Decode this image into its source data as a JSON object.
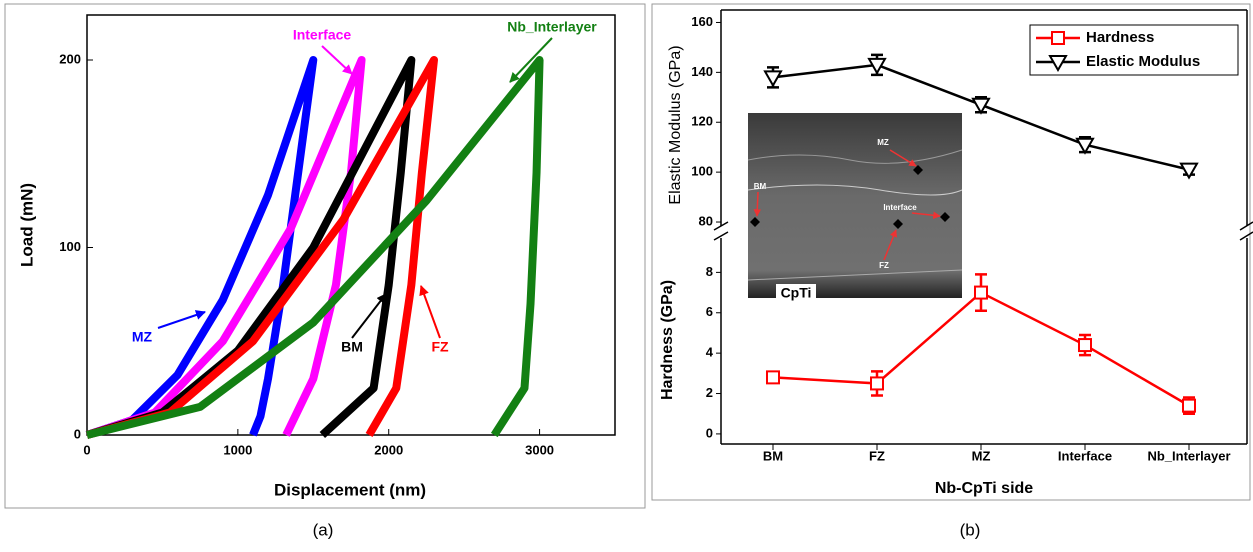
{
  "chart_data": [
    {
      "type": "line",
      "xlabel": "Displacement (nm)",
      "ylabel": "Load (mN)",
      "xlim": [
        0,
        3500
      ],
      "ylim": [
        0,
        224
      ],
      "xticks": [
        0,
        1000,
        2000,
        3000
      ],
      "yticks": [
        0,
        100,
        200
      ],
      "series": [
        {
          "name": "MZ",
          "color": "#0000ff",
          "x": [
            0,
            300,
            600,
            900,
            1200,
            1500,
            1400,
            1300,
            1200,
            1150,
            1100
          ],
          "values": [
            0,
            8,
            32,
            72,
            128,
            200,
            140,
            80,
            30,
            10,
            0
          ]
        },
        {
          "name": "Interface",
          "color": "#ff00ff",
          "x": [
            0,
            450,
            900,
            1350,
            1820,
            1750,
            1650,
            1500,
            1320
          ],
          "values": [
            0,
            12,
            50,
            110,
            200,
            140,
            80,
            30,
            0
          ]
        },
        {
          "name": "BM",
          "color": "#000000",
          "x": [
            0,
            500,
            1000,
            1500,
            2150,
            2080,
            2000,
            1900,
            1560
          ],
          "values": [
            0,
            12,
            45,
            100,
            200,
            140,
            80,
            25,
            0
          ]
        },
        {
          "name": "FZ",
          "color": "#ff0000",
          "x": [
            0,
            550,
            1100,
            1700,
            2300,
            2220,
            2150,
            2050,
            1870
          ],
          "values": [
            0,
            12,
            50,
            115,
            200,
            140,
            80,
            25,
            0
          ]
        },
        {
          "name": "Nb_Interlayer",
          "color": "#138013",
          "x": [
            0,
            750,
            1500,
            2250,
            3000,
            2980,
            2940,
            2900,
            2700
          ],
          "values": [
            0,
            15,
            60,
            125,
            200,
            140,
            70,
            25,
            0
          ]
        }
      ]
    },
    {
      "type": "broken_line",
      "xlabel": "Nb-CpTi side",
      "ylabel": "Hardness (GPa)",
      "y2label": "Elastic Modulus (GPa)",
      "categories": [
        "BM",
        "FZ",
        "MZ",
        "Interface",
        "Nb_Interlayer"
      ],
      "ylim": [
        -0.5,
        10
      ],
      "yticks": [
        0,
        2,
        4,
        6,
        8
      ],
      "y2lim": [
        76,
        165
      ],
      "y2ticks": [
        80,
        100,
        120,
        140,
        160
      ],
      "legend": "upper right",
      "series": [
        {
          "name": "Hardness",
          "color": "#ff0000",
          "marker": "square",
          "values": [
            2.8,
            2.5,
            7.0,
            4.4,
            1.4
          ],
          "errors": [
            0.2,
            0.6,
            0.9,
            0.5,
            0.4
          ]
        },
        {
          "name": "Elastic Modulus",
          "color": "#000000",
          "marker": "triangle",
          "axis": "y2",
          "values": [
            138,
            143,
            127,
            111,
            101
          ],
          "errors": [
            4,
            4,
            3,
            3,
            2
          ]
        }
      ],
      "inset_labels": [
        "MZ",
        "BM",
        "Interface",
        "FZ",
        "CpTi"
      ]
    }
  ],
  "captions": [
    "(a)",
    "(b)"
  ]
}
